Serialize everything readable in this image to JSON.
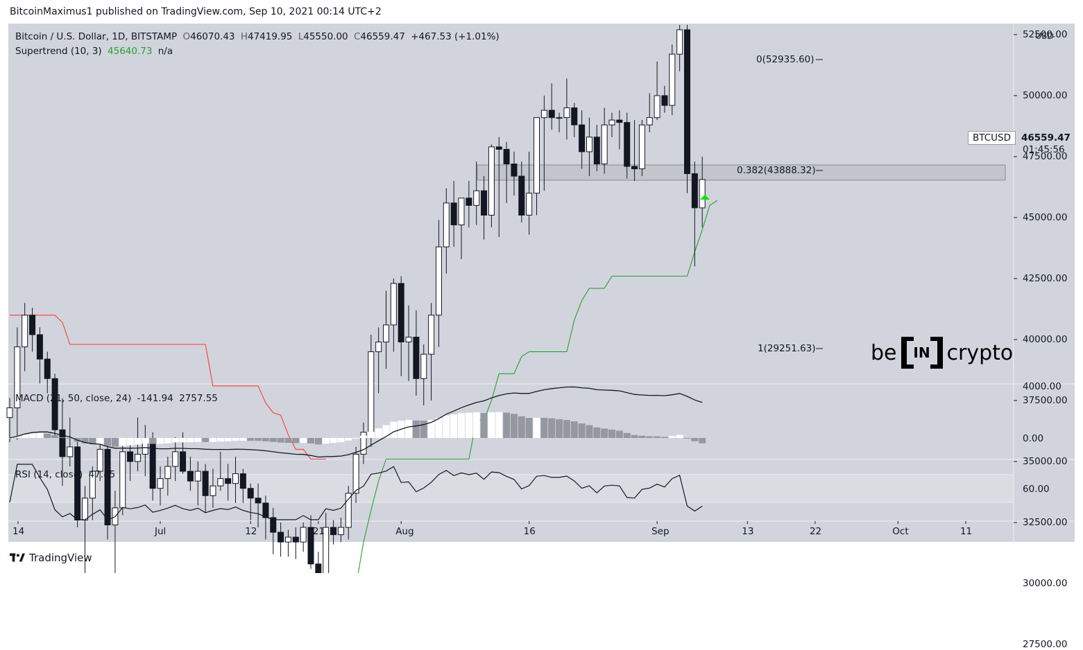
{
  "header": {
    "publisher_line": "BitcoinMaximus1 published on TradingView.com, Sep 10, 2021 00:14 UTC+2"
  },
  "legend": {
    "symbol": "Bitcoin / U.S. Dollar, 1D, BITSTAMP",
    "o_label": "O",
    "o_value": "46070.43",
    "h_label": "H",
    "h_value": "47419.95",
    "l_label": "L",
    "l_value": "45550.00",
    "c_label": "C",
    "c_value": "46559.47",
    "change": "+467.53 (+1.01%)",
    "supertrend_label": "Supertrend (10, 3)",
    "supertrend_value": "45640.73",
    "supertrend_na": "n/a"
  },
  "price_scale": {
    "currency": "USD",
    "ticks": [
      "55000.00",
      "52500.00",
      "50000.00",
      "47500.00",
      "45000.00",
      "42500.00",
      "40000.00",
      "37500.00",
      "35000.00",
      "32500.00",
      "30000.00",
      "27500.00"
    ],
    "last_price_symbol": "BTCUSD",
    "last_price": "46559.47",
    "countdown": "01:45:56"
  },
  "fib": {
    "level_0": "0(52935.60)",
    "level_0382": "0.382(43888.32)",
    "level_1": "1(29251.63)"
  },
  "macd": {
    "label": "MACD (21, 50, close, 24)",
    "v1": "-141.94",
    "v2": "2757.55",
    "ticks": [
      "4000.00",
      "0.00"
    ]
  },
  "rsi": {
    "label": "RSI (14, close)",
    "value": "47.45",
    "ticks": [
      "60.00"
    ]
  },
  "time_axis": [
    "14",
    "Jul",
    "12",
    "21",
    "Aug",
    "16",
    "Sep",
    "13",
    "22",
    "Oct",
    "11"
  ],
  "watermark": {
    "left": "be",
    "box": "IN",
    "right": "crypto"
  },
  "footer": {
    "brand": "TradingView"
  },
  "colors": {
    "up": "#ffffff",
    "down": "#131722",
    "supertrend_up": "#26a12f",
    "supertrend_down": "#ff3b30",
    "macd_hist_light": "#ffffff",
    "macd_hist_gray": "#9598a1",
    "rsi_band": "#d8dae0",
    "arrow": "#00e600"
  },
  "chart_data": {
    "type": "candlestick",
    "timeframe": "1D",
    "ylim": [
      27500,
      55000
    ],
    "candles": [
      [
        36800,
        37600,
        35800,
        37200
      ],
      [
        37200,
        40500,
        35900,
        39700
      ],
      [
        39700,
        41500,
        38700,
        41000
      ],
      [
        41000,
        41300,
        39500,
        40200
      ],
      [
        40200,
        40500,
        38200,
        39200
      ],
      [
        39200,
        39500,
        37800,
        38400
      ],
      [
        38400,
        38600,
        36000,
        36300
      ],
      [
        36300,
        37600,
        34000,
        35200
      ],
      [
        35200,
        36800,
        34800,
        35600
      ],
      [
        35600,
        35900,
        32300,
        32600
      ],
      [
        32600,
        34000,
        29000,
        33500
      ],
      [
        33500,
        34800,
        32600,
        34600
      ],
      [
        34600,
        35800,
        34200,
        35500
      ],
      [
        35500,
        35800,
        31800,
        32400
      ],
      [
        32400,
        33800,
        30300,
        33100
      ],
      [
        33100,
        35700,
        32800,
        35400
      ],
      [
        35400,
        35900,
        34200,
        35000
      ],
      [
        35000,
        36800,
        34600,
        35300
      ],
      [
        35300,
        36500,
        34400,
        35900
      ],
      [
        35900,
        36200,
        33400,
        33900
      ],
      [
        33900,
        34800,
        33200,
        34300
      ],
      [
        34300,
        35200,
        33600,
        34800
      ],
      [
        34800,
        36000,
        34200,
        35400
      ],
      [
        35400,
        36200,
        34500,
        34600
      ],
      [
        34600,
        35200,
        33800,
        34200
      ],
      [
        34200,
        35000,
        33200,
        34600
      ],
      [
        34600,
        34900,
        32900,
        33600
      ],
      [
        33600,
        34700,
        33100,
        34000
      ],
      [
        34000,
        35400,
        33800,
        34300
      ],
      [
        34300,
        34900,
        33400,
        34100
      ],
      [
        34100,
        35200,
        33300,
        34500
      ],
      [
        34500,
        34700,
        33300,
        33900
      ],
      [
        33900,
        34100,
        32600,
        33500
      ],
      [
        33500,
        34100,
        32300,
        33300
      ],
      [
        33300,
        33600,
        31800,
        32700
      ],
      [
        32700,
        33100,
        31200,
        32100
      ],
      [
        32100,
        32500,
        31100,
        31700
      ],
      [
        31700,
        32200,
        31100,
        31900
      ],
      [
        31900,
        32300,
        31000,
        31700
      ],
      [
        31700,
        32500,
        31300,
        32300
      ],
      [
        32300,
        32800,
        30600,
        30800
      ],
      [
        30800,
        31300,
        29500,
        29800
      ],
      [
        29800,
        32900,
        29400,
        32300
      ],
      [
        32300,
        32600,
        31600,
        32000
      ],
      [
        32000,
        32700,
        31700,
        32300
      ],
      [
        32300,
        34000,
        31800,
        33700
      ],
      [
        33700,
        35600,
        33300,
        35300
      ],
      [
        35300,
        36600,
        34900,
        36200
      ],
      [
        36200,
        40200,
        35600,
        39500
      ],
      [
        39500,
        40500,
        37800,
        39900
      ],
      [
        39900,
        42000,
        38800,
        40600
      ],
      [
        40600,
        42500,
        39500,
        42300
      ],
      [
        42300,
        42600,
        38500,
        39900
      ],
      [
        39900,
        41400,
        38300,
        40100
      ],
      [
        40100,
        41200,
        37700,
        38400
      ],
      [
        38400,
        39800,
        37300,
        39400
      ],
      [
        39400,
        41500,
        37500,
        41000
      ],
      [
        41000,
        44900,
        39700,
        43800
      ],
      [
        43800,
        46200,
        42700,
        45600
      ],
      [
        45600,
        46500,
        43800,
        44700
      ],
      [
        44700,
        45600,
        43300,
        45800
      ],
      [
        45800,
        46500,
        44600,
        45500
      ],
      [
        45500,
        47300,
        44700,
        46100
      ],
      [
        46100,
        46700,
        44100,
        45100
      ],
      [
        45100,
        48000,
        44600,
        47900
      ],
      [
        47900,
        48300,
        44200,
        47800
      ],
      [
        47800,
        48100,
        45600,
        47200
      ],
      [
        47200,
        47700,
        45900,
        46700
      ],
      [
        46700,
        47300,
        44800,
        45100
      ],
      [
        45100,
        47700,
        44300,
        46000
      ],
      [
        46000,
        49000,
        45100,
        49100
      ],
      [
        49100,
        50000,
        46100,
        49400
      ],
      [
        49400,
        50500,
        48600,
        49100
      ],
      [
        49100,
        49300,
        48500,
        49100
      ],
      [
        49100,
        50700,
        48200,
        49500
      ],
      [
        49500,
        49700,
        48300,
        48800
      ],
      [
        48800,
        49400,
        47000,
        47700
      ],
      [
        47700,
        49100,
        46700,
        48300
      ],
      [
        48300,
        48800,
        46900,
        47200
      ],
      [
        47200,
        49500,
        46800,
        48800
      ],
      [
        48800,
        49300,
        48300,
        49000
      ],
      [
        49000,
        49400,
        47800,
        48900
      ],
      [
        48900,
        49300,
        46600,
        47100
      ],
      [
        47100,
        49000,
        46500,
        47000
      ],
      [
        47000,
        49000,
        46700,
        48800
      ],
      [
        48800,
        50100,
        48500,
        49100
      ],
      [
        49100,
        51400,
        49000,
        50000
      ],
      [
        50000,
        50400,
        49300,
        49600
      ],
      [
        49600,
        52100,
        49200,
        51700
      ],
      [
        51700,
        52900,
        51000,
        52700
      ],
      [
        52700,
        52900,
        46000,
        46800
      ],
      [
        46800,
        47300,
        43000,
        45400
      ],
      [
        45400,
        47500,
        44600,
        46559
      ]
    ],
    "supertrend_down": [
      41000,
      41000,
      41000,
      41000,
      41000,
      41000,
      41000,
      40700,
      39800,
      39800,
      39800,
      39800,
      39800,
      39800,
      39800,
      39800,
      39800,
      39800,
      39800,
      39800,
      39800,
      39800,
      39800,
      39800,
      39800,
      39800,
      39800,
      38100,
      38100,
      38100,
      38100,
      38100,
      38100,
      38100,
      37400,
      37000,
      36900,
      36100,
      35500,
      35500,
      35100,
      35100,
      35100
    ],
    "supertrend_up": [
      29900,
      31700,
      33000,
      34200,
      35100,
      35100,
      35100,
      35100,
      35100,
      35100,
      35100,
      35100,
      35100,
      35100,
      35100,
      35100,
      36700,
      36700,
      37500,
      38600,
      38600,
      38600,
      39300,
      39500,
      39500,
      39500,
      39500,
      39500,
      39500,
      40800,
      41600,
      42100,
      42100,
      42100,
      42600,
      42600,
      42600,
      42600,
      42600,
      42600,
      42600,
      42600,
      42600,
      42600,
      42600,
      43600,
      44500,
      45500,
      45700
    ]
  }
}
